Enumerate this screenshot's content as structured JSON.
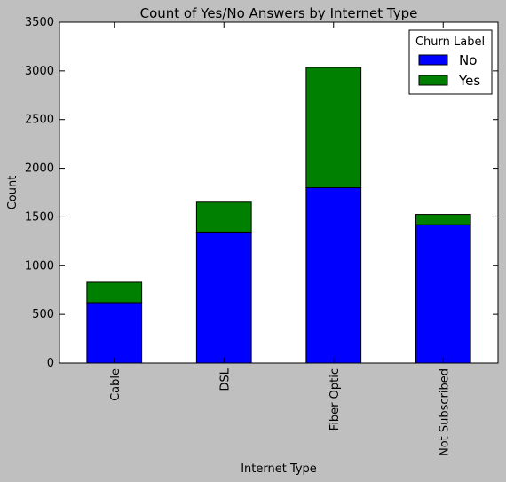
{
  "chart_data": {
    "type": "bar",
    "stacked": true,
    "title": "Count of Yes/No Answers by Internet Type",
    "xlabel": "Internet Type",
    "ylabel": "Count",
    "categories": [
      "Cable",
      "DSL",
      "Fiber Optic",
      "Not Subscribed"
    ],
    "series": [
      {
        "name": "No",
        "values": [
          620,
          1345,
          1800,
          1420
        ],
        "color": "#0000ff"
      },
      {
        "name": "Yes",
        "values": [
          210,
          307,
          1235,
          106
        ],
        "color": "#008000"
      }
    ],
    "ylim": [
      0,
      3500
    ],
    "yticks": [
      0,
      500,
      1000,
      1500,
      2000,
      2500,
      3000,
      3500
    ],
    "grid": false,
    "legend": {
      "title": "Churn Label",
      "placement": "top-right"
    }
  }
}
